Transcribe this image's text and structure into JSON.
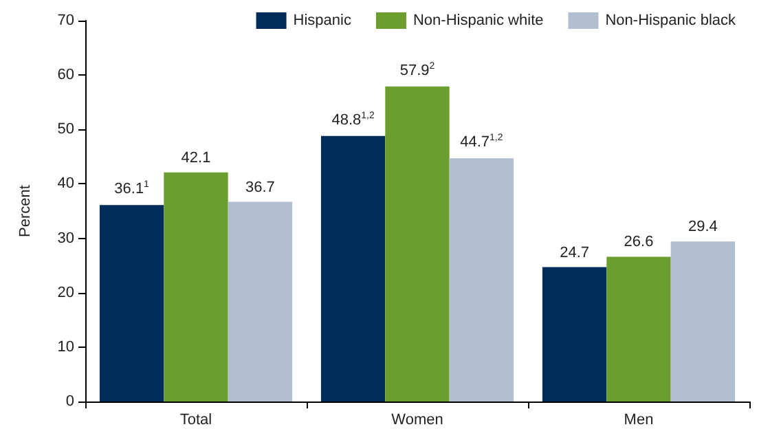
{
  "chart_data": {
    "type": "bar",
    "ylabel": "Percent",
    "categories": [
      "Total",
      "Women",
      "Men"
    ],
    "series": [
      {
        "name": "Hispanic",
        "color": "#002d5a",
        "values": [
          36.1,
          48.8,
          24.7
        ],
        "value_labels": [
          "36.1$^{1}$",
          "48.8$^{1,2}$",
          "24.7"
        ]
      },
      {
        "name": "Non-Hispanic white",
        "color": "#6b9e2f",
        "values": [
          42.1,
          57.9,
          26.6
        ],
        "value_labels": [
          "42.1",
          "57.9$^{2}$",
          "26.6"
        ]
      },
      {
        "name": "Non-Hispanic black",
        "color": "#b1bfd0",
        "values": [
          36.7,
          44.7,
          29.4
        ],
        "value_labels": [
          "36.7",
          "44.7$^{1,2}$",
          "29.4"
        ]
      }
    ],
    "ylim": [
      0,
      70
    ],
    "yticks": [
      0,
      10,
      20,
      30,
      40,
      50,
      60,
      70
    ],
    "grid": false,
    "legend": "top right"
  }
}
